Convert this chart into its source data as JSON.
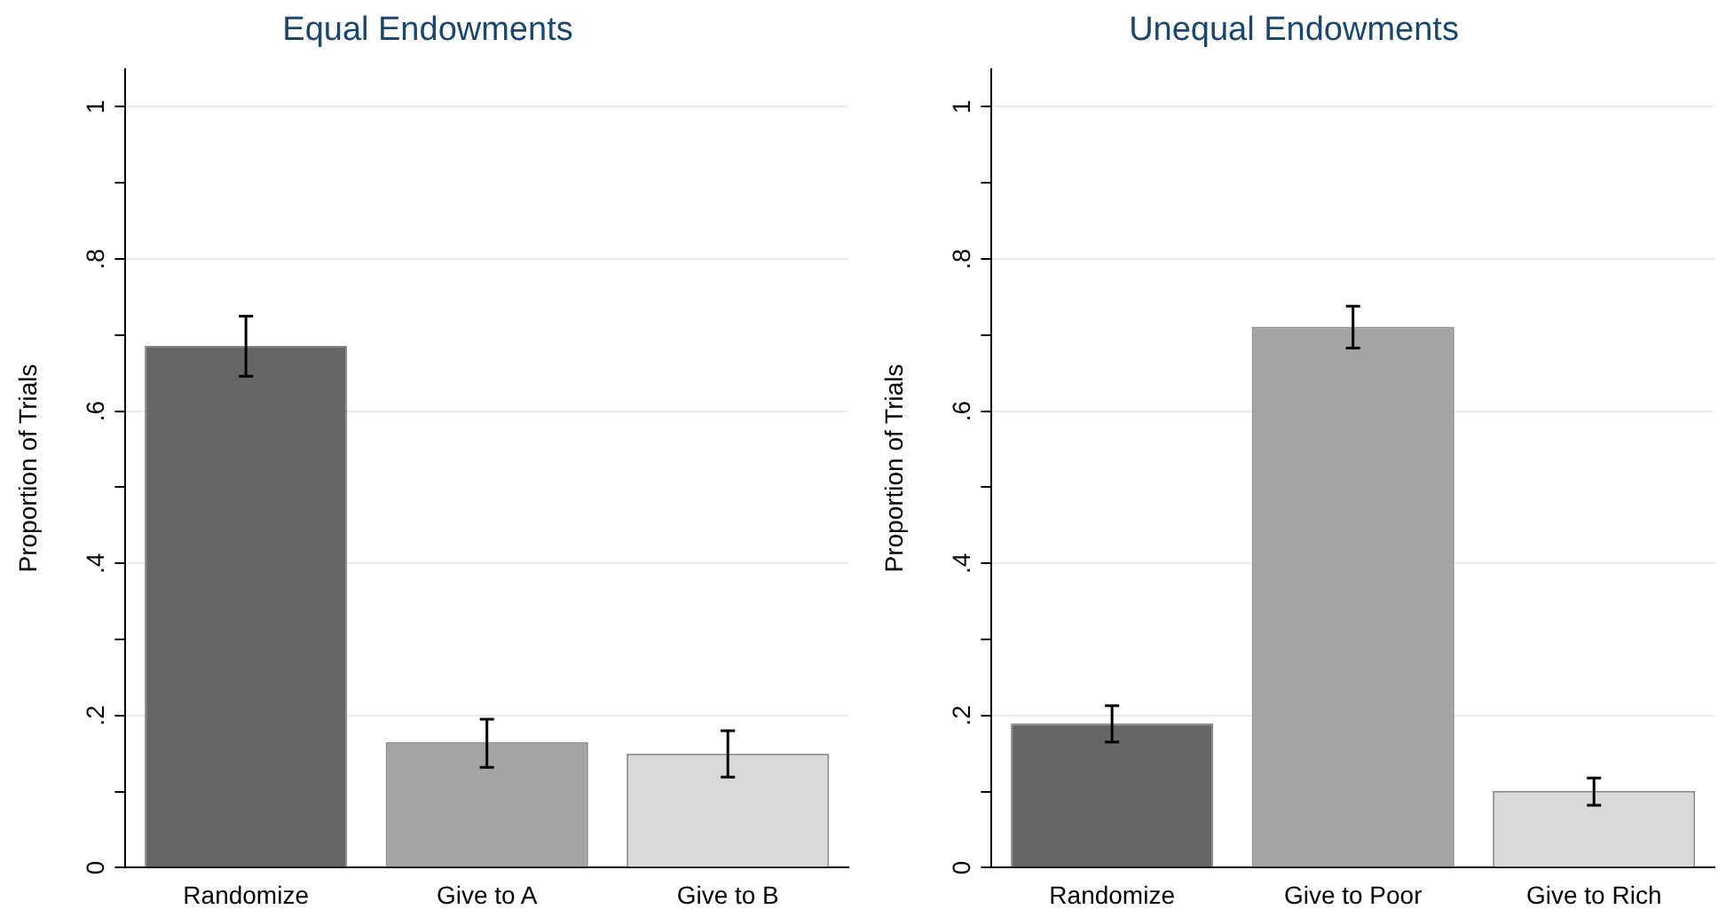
{
  "chart_data": [
    {
      "type": "bar",
      "title": "Equal Endowments",
      "ylabel": "Proportion of Trials",
      "categories": [
        "Randomize",
        "Give to A",
        "Give to B"
      ],
      "values": [
        0.686,
        0.165,
        0.15
      ],
      "colors": [
        "#666666",
        "#a4a4a4",
        "#d9d9d9"
      ],
      "errors": [
        [
          0.646,
          0.725
        ],
        [
          0.132,
          0.195
        ],
        [
          0.119,
          0.18
        ]
      ],
      "ylim": [
        0,
        1.05
      ],
      "yticks": [
        {
          "value": 0,
          "label": "0"
        },
        {
          "value": 0.1,
          "label": null
        },
        {
          "value": 0.2,
          "label": ".2"
        },
        {
          "value": 0.3,
          "label": null
        },
        {
          "value": 0.4,
          "label": ".4"
        },
        {
          "value": 0.5,
          "label": null
        },
        {
          "value": 0.6,
          "label": ".6"
        },
        {
          "value": 0.7,
          "label": null
        },
        {
          "value": 0.8,
          "label": ".8"
        },
        {
          "value": 0.9,
          "label": null
        },
        {
          "value": 1,
          "label": "1"
        }
      ],
      "grid": "y",
      "legend": false
    },
    {
      "type": "bar",
      "title": "Unequal Endowments",
      "ylabel": "Proportion of Trials",
      "categories": [
        "Randomize",
        "Give to Poor",
        "Give to Rich"
      ],
      "values": [
        0.19,
        0.711,
        0.101
      ],
      "colors": [
        "#666666",
        "#a4a4a4",
        "#d9d9d9"
      ],
      "errors": [
        [
          0.165,
          0.213
        ],
        [
          0.683,
          0.738
        ],
        [
          0.082,
          0.118
        ]
      ],
      "ylim": [
        0,
        1.05
      ],
      "yticks": [
        {
          "value": 0,
          "label": "0"
        },
        {
          "value": 0.1,
          "label": null
        },
        {
          "value": 0.2,
          "label": ".2"
        },
        {
          "value": 0.3,
          "label": null
        },
        {
          "value": 0.4,
          "label": ".4"
        },
        {
          "value": 0.5,
          "label": null
        },
        {
          "value": 0.6,
          "label": ".6"
        },
        {
          "value": 0.7,
          "label": null
        },
        {
          "value": 0.8,
          "label": ".8"
        },
        {
          "value": 0.9,
          "label": null
        },
        {
          "value": 1,
          "label": "1"
        }
      ],
      "grid": "y",
      "legend": false
    }
  ]
}
